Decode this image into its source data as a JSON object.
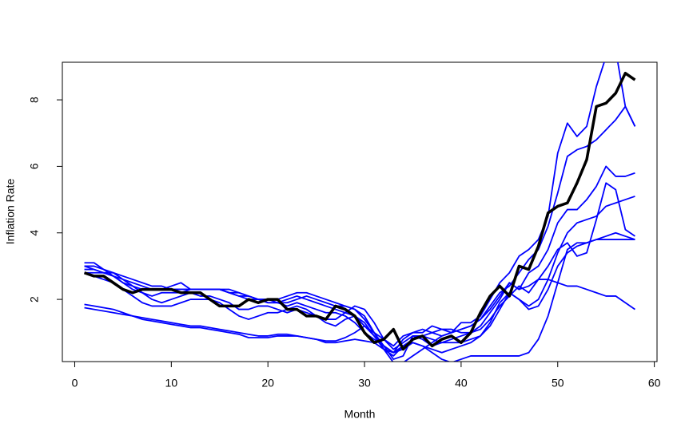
{
  "chart_data": {
    "type": "line",
    "x_label": "Month",
    "y_label": "Inflation Rate",
    "x": [
      1,
      2,
      3,
      4,
      5,
      6,
      7,
      8,
      9,
      10,
      11,
      12,
      13,
      14,
      15,
      16,
      17,
      18,
      19,
      20,
      21,
      22,
      23,
      24,
      25,
      26,
      27,
      28,
      29,
      30,
      31,
      32,
      33,
      34,
      35,
      36,
      37,
      38,
      39,
      40,
      41,
      42,
      43,
      44,
      45,
      46,
      47,
      48,
      49,
      50,
      51,
      52,
      53,
      54,
      55,
      56,
      57,
      58
    ],
    "xlim": [
      -1.28,
      60.28
    ],
    "xticks": [
      0,
      10,
      20,
      30,
      40,
      50,
      60
    ],
    "ylim": [
      0.13,
      9.13
    ],
    "yticks": [
      2,
      4,
      6,
      8
    ],
    "series": [
      {
        "color": "#0000ff",
        "values": [
          3.1,
          3.1,
          2.9,
          2.7,
          2.6,
          2.5,
          2.4,
          2.3,
          2.3,
          2.4,
          2.5,
          2.3,
          2.3,
          2.3,
          2.3,
          2.2,
          2.1,
          2.0,
          2.0,
          2.0,
          2.0,
          2.1,
          2.2,
          2.2,
          2.1,
          2.0,
          1.9,
          1.8,
          1.7,
          1.4,
          1.0,
          0.8,
          0.6,
          0.9,
          1.0,
          1.0,
          1.2,
          1.1,
          1.0,
          1.3,
          1.3,
          1.5,
          2.0,
          2.5,
          2.8,
          3.3,
          3.5,
          3.8,
          4.5,
          6.4,
          7.3,
          6.9,
          7.2,
          8.4,
          9.3,
          9.5,
          7.8,
          7.2
        ]
      },
      {
        "color": "#0000ff",
        "values": [
          3.0,
          3.0,
          2.9,
          2.8,
          2.7,
          2.6,
          2.5,
          2.4,
          2.4,
          2.3,
          2.3,
          2.3,
          2.3,
          2.3,
          2.3,
          2.2,
          2.1,
          2.1,
          2.0,
          2.0,
          1.9,
          1.8,
          1.9,
          1.8,
          1.7,
          1.6,
          1.6,
          1.5,
          1.3,
          1.0,
          0.8,
          0.6,
          0.4,
          0.8,
          1.0,
          1.1,
          1.0,
          0.9,
          1.0,
          1.1,
          1.2,
          1.4,
          1.8,
          2.2,
          2.4,
          2.8,
          3.2,
          3.5,
          4.2,
          5.2,
          6.3,
          6.5,
          6.6,
          6.8,
          7.1,
          7.4,
          7.8,
          7.2
        ]
      },
      {
        "color": "#0000ff",
        "values": [
          2.9,
          2.9,
          2.8,
          2.7,
          2.5,
          2.3,
          2.2,
          2.1,
          2.2,
          2.2,
          2.2,
          2.3,
          2.3,
          2.3,
          2.3,
          2.2,
          2.2,
          2.1,
          2.0,
          1.9,
          1.9,
          2.0,
          2.1,
          2.0,
          1.9,
          1.8,
          1.7,
          1.6,
          1.5,
          1.2,
          0.9,
          0.5,
          0.3,
          0.6,
          0.8,
          0.9,
          1.0,
          1.1,
          1.1,
          1.0,
          1.0,
          1.2,
          1.6,
          2.0,
          2.5,
          2.3,
          2.8,
          3.0,
          3.5,
          4.3,
          4.7,
          4.7,
          5.0,
          5.4,
          6.0,
          5.7,
          5.7,
          5.8
        ]
      },
      {
        "color": "#0000ff",
        "values": [
          2.8,
          2.8,
          2.8,
          2.8,
          2.6,
          2.4,
          2.2,
          2.0,
          1.9,
          2.0,
          2.1,
          2.2,
          2.1,
          2.1,
          2.0,
          1.9,
          1.7,
          1.7,
          1.8,
          1.8,
          1.7,
          1.6,
          1.7,
          1.6,
          1.5,
          1.4,
          1.4,
          1.6,
          1.8,
          1.7,
          1.3,
          0.8,
          0.5,
          0.7,
          0.9,
          0.8,
          0.6,
          0.7,
          0.8,
          0.9,
          1.0,
          1.1,
          1.4,
          1.8,
          2.1,
          2.4,
          2.2,
          2.6,
          3.0,
          3.5,
          3.7,
          3.3,
          3.4,
          4.4,
          5.5,
          5.3,
          4.1,
          3.9
        ]
      },
      {
        "color": "#0000ff",
        "values": [
          2.8,
          2.7,
          2.6,
          2.5,
          2.3,
          2.1,
          1.9,
          1.8,
          1.8,
          1.8,
          1.9,
          2.0,
          2.0,
          2.0,
          1.9,
          1.7,
          1.5,
          1.4,
          1.5,
          1.6,
          1.6,
          1.7,
          1.8,
          1.7,
          1.5,
          1.3,
          1.2,
          1.4,
          1.5,
          1.3,
          0.9,
          0.6,
          0.4,
          0.5,
          0.7,
          0.6,
          0.4,
          0.2,
          0.1,
          0.2,
          0.3,
          0.3,
          0.3,
          0.3,
          0.3,
          0.3,
          0.4,
          0.8,
          1.5,
          2.5,
          3.5,
          3.7,
          3.7,
          3.8,
          3.8,
          3.8,
          3.8,
          3.8
        ]
      },
      {
        "color": "#0000ff",
        "values": [
          3.0,
          2.9,
          2.8,
          2.7,
          2.5,
          2.4,
          2.3,
          2.3,
          2.3,
          2.3,
          2.3,
          2.3,
          2.3,
          2.3,
          2.3,
          2.3,
          2.2,
          2.1,
          2.0,
          1.9,
          1.9,
          1.9,
          2.0,
          2.1,
          2.0,
          1.9,
          1.8,
          1.8,
          1.7,
          1.5,
          1.0,
          0.5,
          0.1,
          0.1,
          0.3,
          0.5,
          0.7,
          0.9,
          1.0,
          1.1,
          1.2,
          1.4,
          1.7,
          2.1,
          2.5,
          2.3,
          2.4,
          2.6,
          2.6,
          2.5,
          2.4,
          2.4,
          2.3,
          2.2,
          2.1,
          2.1,
          1.9,
          1.7
        ]
      },
      {
        "color": "#0000ff",
        "values": [
          1.85,
          1.8,
          1.75,
          1.7,
          1.6,
          1.5,
          1.45,
          1.4,
          1.35,
          1.3,
          1.25,
          1.2,
          1.2,
          1.15,
          1.1,
          1.05,
          1.0,
          0.95,
          0.9,
          0.9,
          0.95,
          0.95,
          0.9,
          0.85,
          0.8,
          0.75,
          0.75,
          0.85,
          1.0,
          1.2,
          1.0,
          0.6,
          0.2,
          0.3,
          0.9,
          0.9,
          0.8,
          0.7,
          0.7,
          0.7,
          0.8,
          0.9,
          1.2,
          1.7,
          2.2,
          2.0,
          1.8,
          2.0,
          2.6,
          3.4,
          4.0,
          4.3,
          4.4,
          4.5,
          4.8,
          4.9,
          5.0,
          5.1
        ]
      },
      {
        "color": "#0000ff",
        "values": [
          1.75,
          1.7,
          1.65,
          1.6,
          1.55,
          1.5,
          1.4,
          1.35,
          1.3,
          1.25,
          1.2,
          1.15,
          1.15,
          1.1,
          1.05,
          1.0,
          0.95,
          0.85,
          0.85,
          0.85,
          0.9,
          0.9,
          0.9,
          0.85,
          0.8,
          0.7,
          0.7,
          0.75,
          0.8,
          0.75,
          0.7,
          0.5,
          0.4,
          0.6,
          0.7,
          0.6,
          0.5,
          0.4,
          0.5,
          0.6,
          0.7,
          0.9,
          1.3,
          1.9,
          2.2,
          2.0,
          1.7,
          1.8,
          2.3,
          3.0,
          3.4,
          3.6,
          3.7,
          3.8,
          3.9,
          4.0,
          3.9,
          3.8
        ]
      },
      {
        "color": "#000000",
        "values": [
          2.8,
          2.7,
          2.7,
          2.5,
          2.3,
          2.2,
          2.3,
          2.3,
          2.3,
          2.3,
          2.2,
          2.2,
          2.2,
          2.0,
          1.8,
          1.8,
          1.8,
          2.0,
          1.9,
          2.0,
          2.0,
          1.7,
          1.7,
          1.5,
          1.5,
          1.4,
          1.8,
          1.7,
          1.5,
          1.0,
          0.7,
          0.8,
          1.1,
          0.5,
          0.8,
          0.9,
          0.6,
          0.8,
          0.9,
          0.7,
          1.0,
          1.6,
          2.1,
          2.4,
          2.1,
          3.0,
          2.9,
          3.6,
          4.6,
          4.8,
          4.9,
          5.5,
          6.2,
          7.8,
          7.9,
          8.2,
          8.8,
          8.6
        ]
      }
    ]
  }
}
